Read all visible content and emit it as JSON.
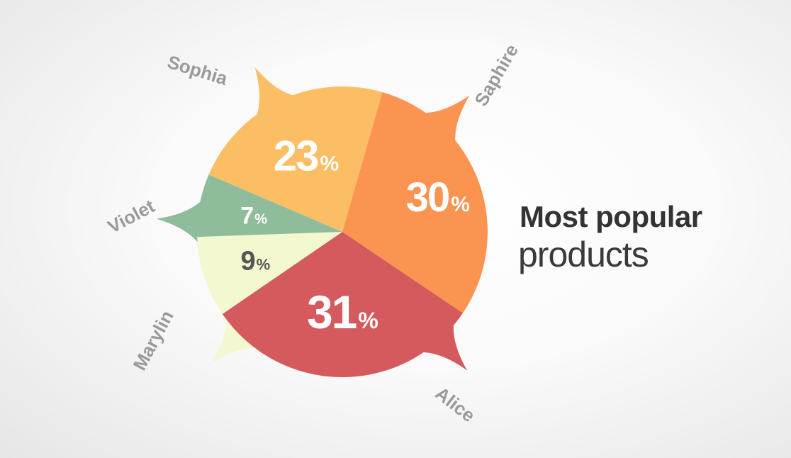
{
  "title": {
    "line1": "Most popular",
    "line2": "products"
  },
  "chart_data": {
    "type": "pie",
    "slices": [
      {
        "name": "Saphire",
        "value": 30,
        "value_label": "30",
        "unit": "%",
        "color": "#fa9450",
        "text_color": "#ffffff"
      },
      {
        "name": "Alice",
        "value": 31,
        "value_label": "31",
        "unit": "%",
        "color": "#d45a5e",
        "text_color": "#ffffff"
      },
      {
        "name": "Marylin",
        "value": 9,
        "value_label": "9",
        "unit": "%",
        "color": "#f3f8d0",
        "text_color": "#555555"
      },
      {
        "name": "Violet",
        "value": 7,
        "value_label": "7",
        "unit": "%",
        "color": "#8fbd9c",
        "text_color": "#ffffff"
      },
      {
        "name": "Sophia",
        "value": 23,
        "value_label": "23",
        "unit": "%",
        "color": "#fbbe64",
        "text_color": "#ffffff"
      }
    ],
    "legend_label_color": "#9a9a9a"
  }
}
